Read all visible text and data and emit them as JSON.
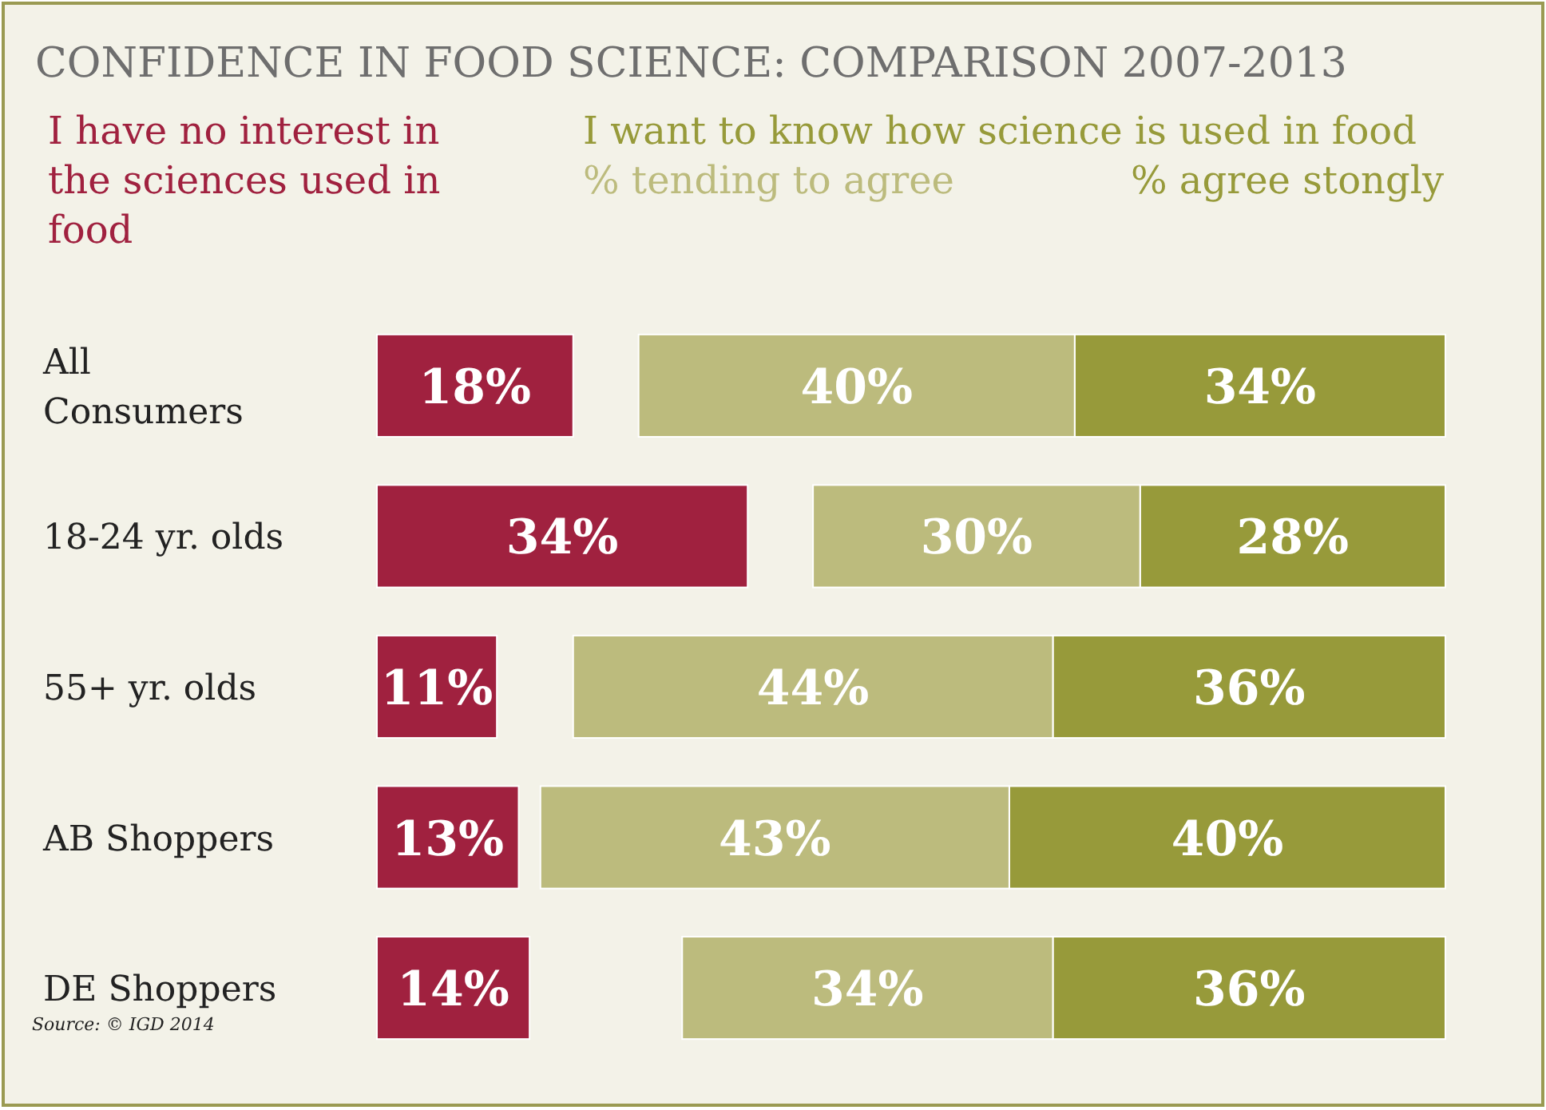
{
  "chart_data": [
    {
      "type": "bar",
      "orientation": "horizontal",
      "title": "CONFIDENCE IN FOOD SCIENCE: COMPARISON 2007-2013",
      "categories": [
        "All Consumers",
        "18-24 yr. olds",
        "55+ yr. olds",
        "AB Shoppers",
        "DE Shoppers"
      ],
      "xlim": [
        0,
        34
      ],
      "legend": "top left",
      "series": [
        {
          "name": "I have no interest in the sciences used in food",
          "color": "#a0213f",
          "values": [
            18,
            34,
            11,
            13,
            14
          ],
          "value_labels": [
            "18%",
            "34%",
            "11%",
            "13%",
            "14%"
          ]
        }
      ],
      "annotations": [
        "Source: © IGD 2014"
      ]
    },
    {
      "type": "bar",
      "orientation": "horizontal",
      "stacked": true,
      "legend_title": "I want to know how science is used in food",
      "categories": [
        null,
        null,
        null,
        null,
        null
      ],
      "xlim": [
        83,
        0
      ],
      "legend": "top",
      "series": [
        {
          "name": "% agree stongly",
          "color": "#979a3a",
          "values": [
            34,
            28,
            36,
            40,
            36
          ],
          "value_labels": [
            "34%",
            "28%",
            "36%",
            "40%",
            "36%"
          ]
        },
        {
          "name": "% tending to agree",
          "color": "#bcbb7d",
          "values": [
            40,
            30,
            44,
            43,
            34
          ],
          "value_labels": [
            "40%",
            "30%",
            "44%",
            "43%",
            "34%"
          ]
        }
      ]
    }
  ]
}
